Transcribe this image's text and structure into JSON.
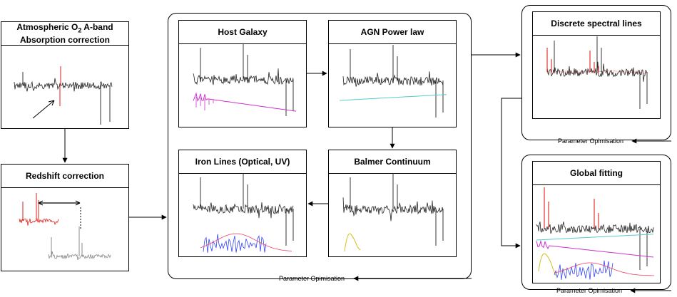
{
  "steps": {
    "o2": {
      "line1_prefix": "Atmospheric O",
      "subscript": "2",
      "line1_suffix": " A-band",
      "line2": "Absorption correction"
    },
    "redshift": {
      "title": "Redshift correction"
    },
    "host_galaxy": {
      "title": "Host Galaxy"
    },
    "agn_power_law": {
      "title": "AGN Power law"
    },
    "iron_lines": {
      "title": "Iron Lines (Optical, UV)"
    },
    "balmer": {
      "title": "Balmer Continuum"
    },
    "discrete_lines": {
      "title": "Discrete spectral lines"
    },
    "global_fit": {
      "title": "Global fitting"
    }
  },
  "captions": {
    "middle_group": "Parameter Opimisation",
    "discrete_group": "Parameter Opimisation",
    "global_group": "Parameter Opimisation"
  },
  "colors": {
    "spectrum": "#222222",
    "emission": "#e0221e",
    "host": "#cc33cc",
    "powerlaw": "#55cccc",
    "iron": "#3344ee",
    "balmer": "#d4c020",
    "ironcurve": "#ee4466",
    "shifted": "#888888"
  }
}
